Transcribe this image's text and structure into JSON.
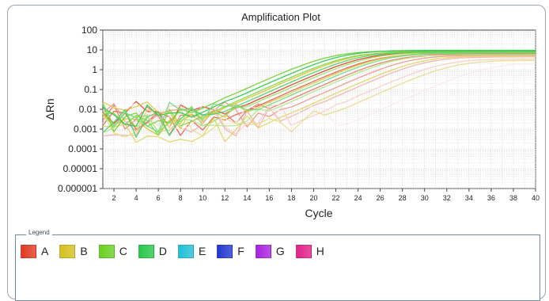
{
  "chart_data": {
    "type": "line",
    "title": "Amplification Plot",
    "xlabel": "Cycle",
    "ylabel": "ΔRn",
    "xlim": [
      1,
      40
    ],
    "ylim": [
      1e-06,
      100
    ],
    "y_scale": "log",
    "x_ticks": [
      "2",
      "4",
      "6",
      "8",
      "10",
      "12",
      "14",
      "16",
      "18",
      "20",
      "22",
      "24",
      "26",
      "28",
      "30",
      "32",
      "34",
      "36",
      "38",
      "40"
    ],
    "y_ticks": [
      "100",
      "10",
      "1",
      "0.1",
      "0.01",
      "0.001",
      "0.0001",
      "0.00001",
      "0.000001"
    ],
    "grid": true,
    "series_groups": [
      {
        "name": "A",
        "color": "#e03a22",
        "curves": [
          {
            "ct": 22.5,
            "plateau": 7.5,
            "baseline": 0.004
          },
          {
            "ct": 23.5,
            "plateau": 6.5,
            "baseline": 0.002
          },
          {
            "ct": 25.0,
            "plateau": 6.0,
            "baseline": 0.003
          },
          {
            "ct": 26.5,
            "plateau": 5.5,
            "baseline": 0.005
          },
          {
            "ct": 28.0,
            "plateau": 4.5,
            "baseline": 0.002
          },
          {
            "ct": 29.5,
            "plateau": 3.5,
            "baseline": 0.003
          },
          {
            "ct": 33.5,
            "plateau": 2.2,
            "baseline": 0.004
          }
        ]
      },
      {
        "name": "B",
        "color": "#d6c020",
        "curves": [
          {
            "ct": 21.5,
            "plateau": 8.5,
            "baseline": 0.002
          },
          {
            "ct": 24.0,
            "plateau": 7.0,
            "baseline": 0.004
          },
          {
            "ct": 27.5,
            "plateau": 5.0,
            "baseline": 0.001
          },
          {
            "ct": 30.5,
            "plateau": 3.0,
            "baseline": 0.002
          }
        ]
      },
      {
        "name": "C",
        "color": "#6ad020",
        "curves": [
          {
            "ct": 19.5,
            "plateau": 9.0,
            "baseline": 0.003
          },
          {
            "ct": 21.0,
            "plateau": 8.0,
            "baseline": 0.002
          },
          {
            "ct": 23.0,
            "plateau": 7.5,
            "baseline": 0.004
          },
          {
            "ct": 25.5,
            "plateau": 6.0,
            "baseline": 0.002
          }
        ]
      },
      {
        "name": "D",
        "color": "#28c84a",
        "curves": [
          {
            "ct": 20.5,
            "plateau": 9.5,
            "baseline": 0.003
          },
          {
            "ct": 22.0,
            "plateau": 8.0,
            "baseline": 0.002
          },
          {
            "ct": 24.5,
            "plateau": 7.0,
            "baseline": 0.004
          }
        ]
      },
      {
        "name": "E",
        "color": "#22c0d6",
        "curves": []
      },
      {
        "name": "F",
        "color": "#2238d0",
        "curves": []
      },
      {
        "name": "G",
        "color": "#a822e0",
        "curves": []
      },
      {
        "name": "H",
        "color": "#e0228a",
        "curves": []
      }
    ]
  },
  "legend": {
    "title": "Legend",
    "items": [
      {
        "label": "A",
        "color": "#e03a22"
      },
      {
        "label": "B",
        "color": "#d6c020"
      },
      {
        "label": "C",
        "color": "#6ad020"
      },
      {
        "label": "D",
        "color": "#28c84a"
      },
      {
        "label": "E",
        "color": "#22c0d6"
      },
      {
        "label": "F",
        "color": "#2238d0"
      },
      {
        "label": "G",
        "color": "#a822e0"
      },
      {
        "label": "H",
        "color": "#e0228a"
      }
    ]
  }
}
